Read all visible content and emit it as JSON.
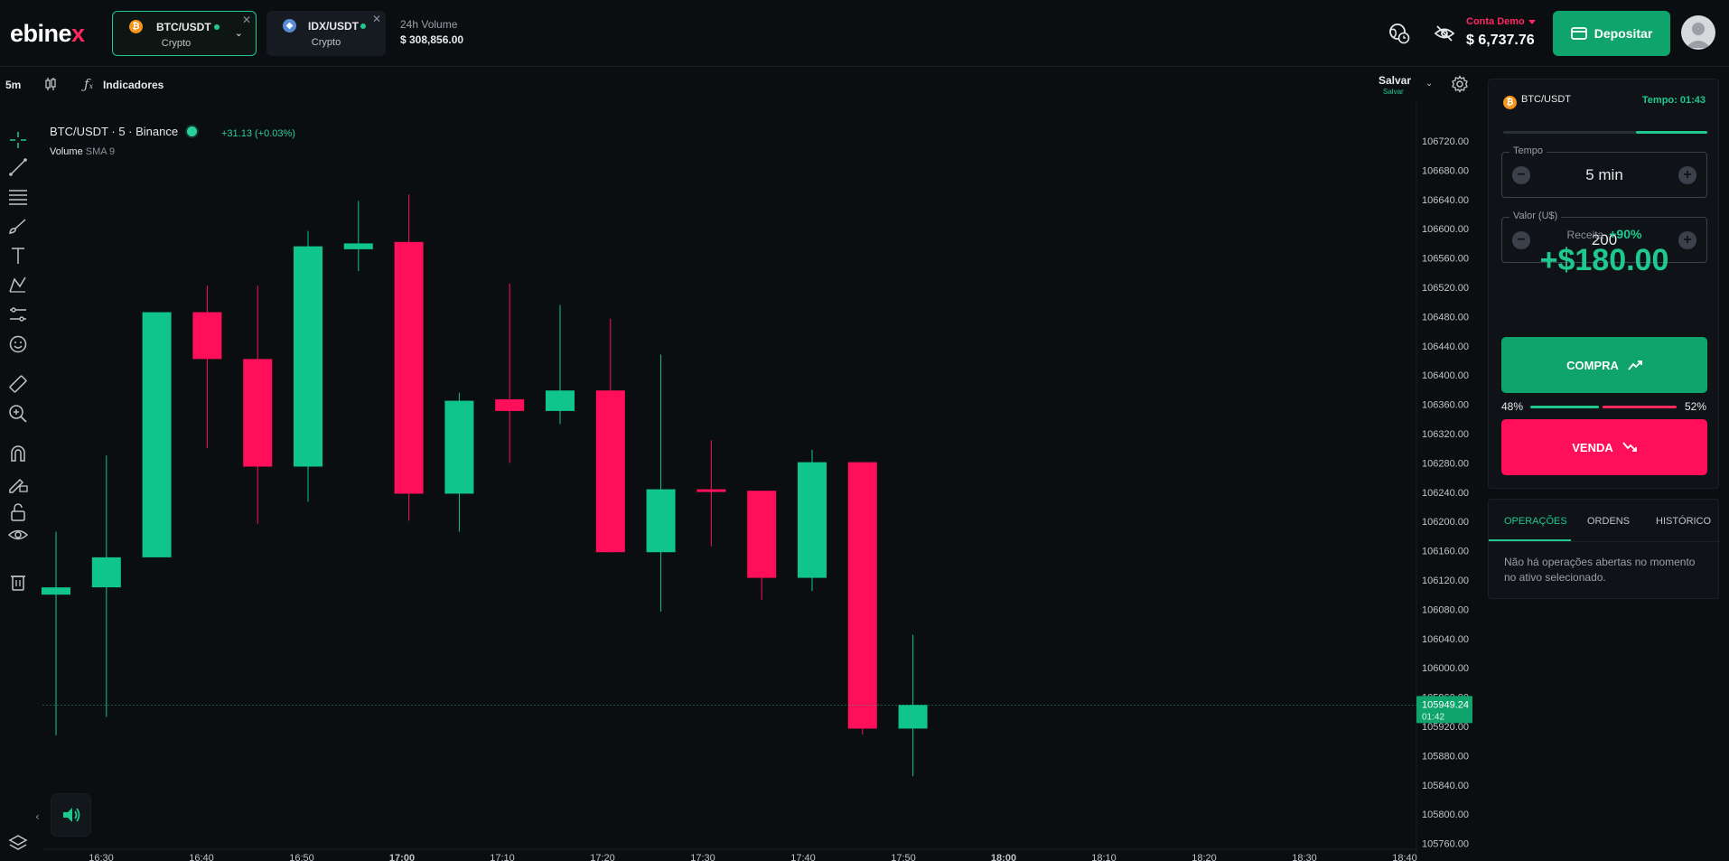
{
  "header": {
    "logo": "ebinex",
    "tabs": [
      {
        "symbol": "BTC/USDT",
        "category": "Crypto",
        "active": true
      },
      {
        "symbol": "IDX/USDT",
        "category": "Crypto",
        "active": false
      }
    ],
    "volume_label": "24h Volume",
    "volume_value": "$ 308,856.00",
    "account_label": "Conta Demo",
    "balance": "$ 6,737.76",
    "deposit_label": "Depositar"
  },
  "toolbar": {
    "interval": "5m",
    "indicators_label": "Indicadores",
    "save_label": "Salvar",
    "save_sub": "Salvar"
  },
  "chart": {
    "title": "BTC/USDT · 5 · Binance",
    "change": "+31.13 (+0.03%)",
    "volume_label": "Volume",
    "volume_sub": "SMA 9",
    "current_price": "105949.24",
    "countdown": "01:42"
  },
  "chart_data": {
    "type": "candlestick",
    "title": "BTC/USDT · 5 · Binance",
    "y_ticks": [
      106720,
      106680,
      106640,
      106600,
      106560,
      106520,
      106480,
      106440,
      106400,
      106360,
      106320,
      106280,
      106240,
      106200,
      106160,
      106120,
      106080,
      106040,
      106000,
      105960,
      105920,
      105880,
      105840,
      105800,
      105760
    ],
    "x_ticks": [
      "16:30",
      "16:40",
      "16:50",
      "17:00",
      "17:10",
      "17:20",
      "17:30",
      "17:40",
      "17:50",
      "18:00",
      "18:10",
      "18:20",
      "18:30",
      "18:40"
    ],
    "ylim": [
      105755,
      106735
    ],
    "candles": [
      {
        "open": 106100,
        "close": 106110,
        "high": 106186,
        "low": 105908
      },
      {
        "open": 106110,
        "close": 106151,
        "high": 106290,
        "low": 105933
      },
      {
        "open": 106151,
        "close": 106486,
        "high": 106486,
        "low": 106151
      },
      {
        "open": 106486,
        "close": 106422,
        "high": 106522,
        "low": 106300
      },
      {
        "open": 106422,
        "close": 106275,
        "high": 106522,
        "low": 106197
      },
      {
        "open": 106275,
        "close": 106576,
        "high": 106597,
        "low": 106227
      },
      {
        "open": 106572,
        "close": 106580,
        "high": 106638,
        "low": 106542
      },
      {
        "open": 106582,
        "close": 106238,
        "high": 106647,
        "low": 106201
      },
      {
        "open": 106238,
        "close": 106365,
        "high": 106376,
        "low": 106186
      },
      {
        "open": 106367,
        "close": 106351,
        "high": 106525,
        "low": 106280
      },
      {
        "open": 106351,
        "close": 106379,
        "high": 106496,
        "low": 106333
      },
      {
        "open": 106379,
        "close": 106158,
        "high": 106477,
        "low": 106158
      },
      {
        "open": 106158,
        "close": 106244,
        "high": 106428,
        "low": 106077
      },
      {
        "open": 106244,
        "close": 106242,
        "high": 106311,
        "low": 106166
      },
      {
        "open": 106242,
        "close": 106123,
        "high": 106242,
        "low": 106093
      },
      {
        "open": 106123,
        "close": 106281,
        "high": 106298,
        "low": 106105
      },
      {
        "open": 106281,
        "close": 105917,
        "high": 106281,
        "low": 105909
      },
      {
        "open": 105917,
        "close": 105949.24,
        "high": 106045,
        "low": 105852
      }
    ]
  },
  "trade_panel": {
    "asset": "BTC/USDT",
    "timer": "Tempo: 01:43",
    "time_progress": 0.35,
    "time_label": "Tempo",
    "time_value": "5 min",
    "amount_label": "Valor (U$)",
    "amount_value": "200",
    "income_label": "Receita",
    "income_pct": "+90%",
    "income_value": "+$180.00",
    "buy_label": "COMPRA",
    "sell_label": "VENDA",
    "buy_pct": "48%",
    "sell_pct": "52%"
  },
  "ops": {
    "tabs": [
      "OPERAÇÕES",
      "ORDENS",
      "HISTÓRICO"
    ],
    "empty_text": "Não há operações abertas no momento no ativo selecionado."
  },
  "colors": {
    "green": "#1fc88d",
    "red": "#ff0f5a",
    "background": "#0b0e11"
  }
}
